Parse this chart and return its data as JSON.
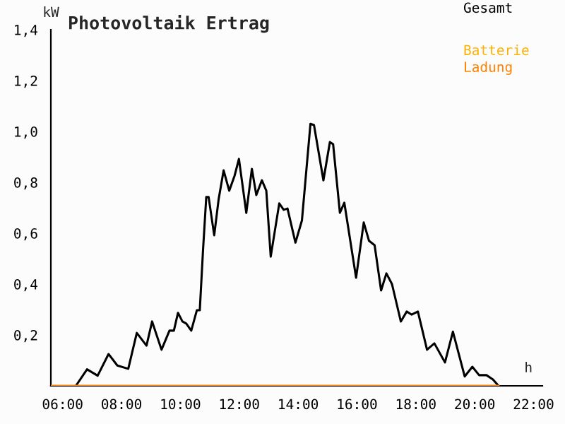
{
  "chart_data": {
    "type": "line",
    "title": "Photovoltaik Ertrag",
    "xlabel": "h",
    "ylabel": "kW",
    "xlim": [
      5.6,
      22.3
    ],
    "ylim": [
      0,
      1.4
    ],
    "xticks": [
      {
        "value": 6,
        "label": "06:00"
      },
      {
        "value": 8,
        "label": "08:00"
      },
      {
        "value": 10,
        "label": "10:00"
      },
      {
        "value": 12,
        "label": "12:00"
      },
      {
        "value": 14,
        "label": "14:00"
      },
      {
        "value": 16,
        "label": "16:00"
      },
      {
        "value": 18,
        "label": "18:00"
      },
      {
        "value": 20,
        "label": "20:00"
      },
      {
        "value": 22,
        "label": "22:00"
      }
    ],
    "yticks": [
      {
        "value": 0,
        "label": null
      },
      {
        "value": 0.2,
        "label": "0,2"
      },
      {
        "value": 0.4,
        "label": "0,4"
      },
      {
        "value": 0.6,
        "label": "0,6"
      },
      {
        "value": 0.8,
        "label": "0,8"
      },
      {
        "value": 1.0,
        "label": "1,0"
      },
      {
        "value": 1.2,
        "label": "1,2"
      },
      {
        "value": 1.4,
        "label": "1,4"
      }
    ],
    "grid": false,
    "legend": "top right",
    "marker": "none",
    "line_style": "solid",
    "series": [
      {
        "name": "Gesamt",
        "color": "#000000",
        "x": [
          6.45,
          6.83,
          7.19,
          7.56,
          7.86,
          8.23,
          8.52,
          8.85,
          9.04,
          9.36,
          9.63,
          9.78,
          9.92,
          10.07,
          10.2,
          10.37,
          10.56,
          10.66,
          10.77,
          10.88,
          10.96,
          11.15,
          11.3,
          11.47,
          11.66,
          11.84,
          11.99,
          12.24,
          12.43,
          12.58,
          12.77,
          12.92,
          13.07,
          13.36,
          13.51,
          13.64,
          13.91,
          14.13,
          14.42,
          14.54,
          14.86,
          15.08,
          15.19,
          15.42,
          15.57,
          15.97,
          16.23,
          16.41,
          16.6,
          16.82,
          17.0,
          17.19,
          17.49,
          17.69,
          17.86,
          18.07,
          18.38,
          18.63,
          18.99,
          19.26,
          19.66,
          19.92,
          20.15,
          20.4,
          20.62,
          20.81
        ],
        "values": [
          0,
          0.065,
          0.04,
          0.125,
          0.08,
          0.067,
          0.208,
          0.158,
          0.253,
          0.142,
          0.217,
          0.217,
          0.287,
          0.253,
          0.245,
          0.217,
          0.297,
          0.297,
          0.533,
          0.742,
          0.742,
          0.592,
          0.733,
          0.847,
          0.767,
          0.825,
          0.892,
          0.68,
          0.853,
          0.75,
          0.808,
          0.767,
          0.508,
          0.717,
          0.692,
          0.697,
          0.563,
          0.65,
          1.03,
          1.025,
          0.808,
          0.958,
          0.95,
          0.68,
          0.72,
          0.425,
          0.642,
          0.57,
          0.553,
          0.375,
          0.442,
          0.4,
          0.253,
          0.292,
          0.28,
          0.292,
          0.142,
          0.167,
          0.092,
          0.213,
          0.037,
          0.075,
          0.042,
          0.042,
          0.025,
          0
        ]
      },
      {
        "name": "Batterie",
        "color": "#ffb000"
      },
      {
        "name": "Ladung",
        "color": "#ff8000",
        "x": [
          5.6,
          20.81
        ],
        "values": [
          0,
          0
        ]
      }
    ]
  }
}
